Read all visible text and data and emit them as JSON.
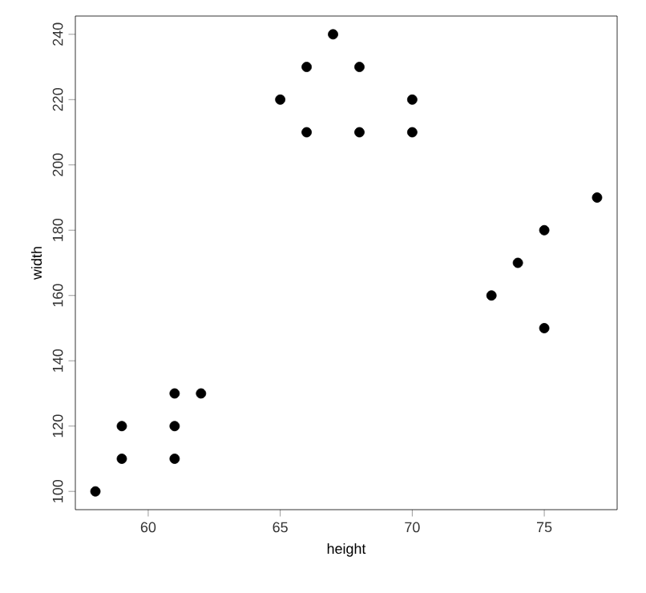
{
  "chart_data": {
    "type": "scatter",
    "xlabel": "height",
    "ylabel": "width",
    "x": [
      58,
      59,
      59,
      61,
      61,
      61,
      62,
      65,
      66,
      66,
      67,
      68,
      68,
      70,
      70,
      73,
      74,
      75,
      75,
      77
    ],
    "values": [
      100,
      110,
      120,
      110,
      120,
      130,
      130,
      220,
      210,
      230,
      240,
      230,
      210,
      220,
      210,
      160,
      170,
      180,
      150,
      190
    ],
    "color": "#000000",
    "xlim": [
      57.24,
      77.76
    ],
    "ylim": [
      94.4,
      245.6
    ],
    "xticks": [
      60,
      65,
      70,
      75
    ],
    "yticks": [
      100,
      120,
      140,
      160,
      180,
      200,
      220,
      240
    ]
  }
}
